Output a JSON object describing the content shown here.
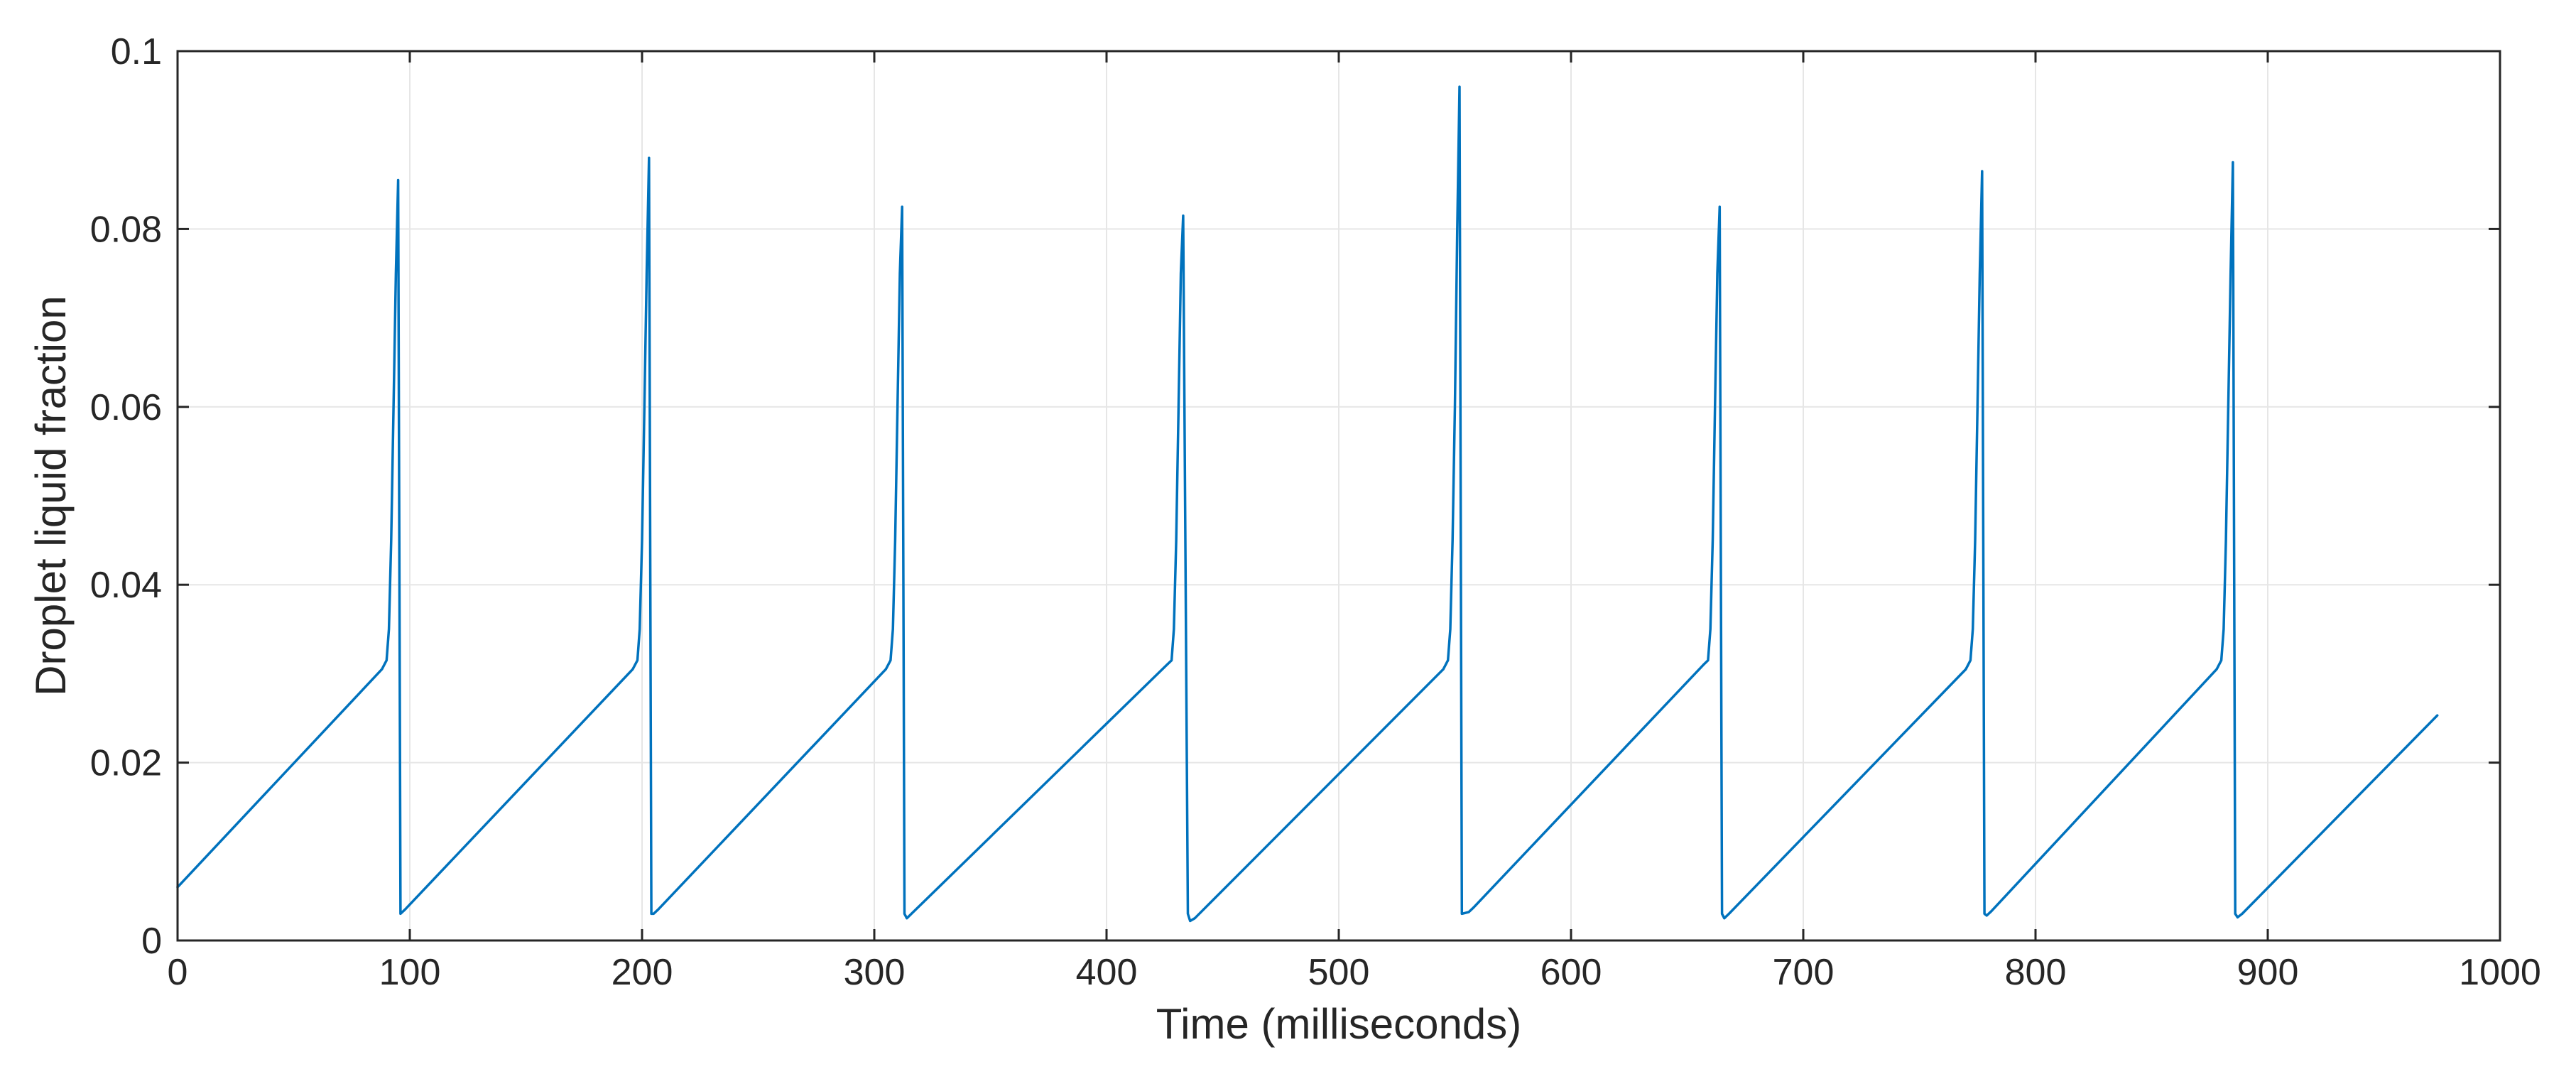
{
  "chart_data": {
    "type": "line",
    "title": "",
    "xlabel": "Time (milliseconds)",
    "ylabel": "Droplet liquid fraction",
    "xlim": [
      0,
      1000
    ],
    "ylim": [
      0,
      0.1
    ],
    "xticks": [
      0,
      100,
      200,
      300,
      400,
      500,
      600,
      700,
      800,
      900,
      1000
    ],
    "xtick_labels": [
      "0",
      "100",
      "200",
      "300",
      "400",
      "500",
      "600",
      "700",
      "800",
      "900",
      "1000"
    ],
    "yticks": [
      0,
      0.02,
      0.04,
      0.06,
      0.08,
      0.1
    ],
    "ytick_labels": [
      "0",
      "0.02",
      "0.04",
      "0.06",
      "0.08",
      "0.1"
    ],
    "grid": true,
    "colors": {
      "series": "#0072BD",
      "grid": "#e6e6e6",
      "axis": "#262626"
    },
    "series": [
      {
        "x": [
          0,
          88,
          90,
          91,
          92,
          93,
          94,
          95,
          96,
          98,
          196,
          198,
          199,
          200,
          201,
          202,
          203,
          204,
          205,
          207,
          305,
          307,
          308,
          309,
          310,
          311,
          312,
          313,
          314,
          316,
          426,
          428,
          429,
          430,
          431,
          432,
          433,
          435,
          436,
          438,
          545,
          547,
          548,
          549,
          550,
          551,
          552,
          553,
          556,
          558,
          657,
          659,
          660,
          661,
          662,
          663,
          664,
          665,
          666,
          668,
          770,
          772,
          773,
          774,
          775,
          776,
          777,
          778,
          779,
          781,
          878,
          880,
          881,
          882,
          883,
          884,
          885,
          886,
          887,
          889,
          973
        ],
        "y": [
          0.006,
          0.0305,
          0.0315,
          0.035,
          0.045,
          0.06,
          0.075,
          0.0855,
          0.003,
          0.0035,
          0.0305,
          0.0315,
          0.035,
          0.045,
          0.06,
          0.075,
          0.088,
          0.003,
          0.003,
          0.0035,
          0.0305,
          0.0315,
          0.035,
          0.045,
          0.06,
          0.075,
          0.0825,
          0.003,
          0.0025,
          0.003,
          0.031,
          0.0315,
          0.035,
          0.045,
          0.06,
          0.075,
          0.0815,
          0.003,
          0.0022,
          0.0025,
          0.0305,
          0.0315,
          0.035,
          0.045,
          0.06,
          0.08,
          0.096,
          0.003,
          0.0032,
          0.0037,
          0.031,
          0.0315,
          0.035,
          0.045,
          0.06,
          0.075,
          0.0825,
          0.003,
          0.0025,
          0.003,
          0.0305,
          0.0315,
          0.035,
          0.045,
          0.06,
          0.075,
          0.0865,
          0.003,
          0.0028,
          0.0033,
          0.0305,
          0.0315,
          0.035,
          0.045,
          0.06,
          0.075,
          0.0875,
          0.003,
          0.0026,
          0.003,
          0.0253
        ]
      }
    ]
  }
}
